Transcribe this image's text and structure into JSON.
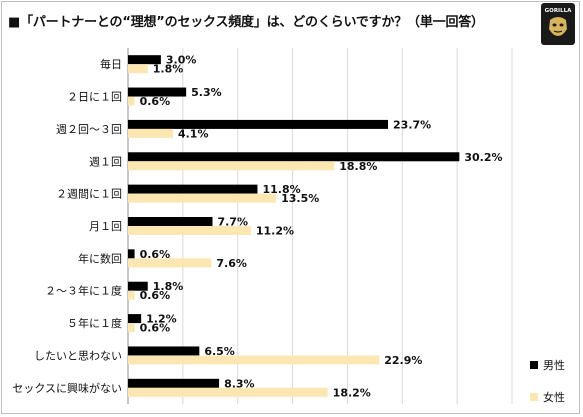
{
  "title": "■「パートナーとの“理想”のセックス頻度」は、どのくらいですか？（単一回答）",
  "logo": {
    "text": "GORILLA",
    "icon": "gorilla-icon"
  },
  "colors": {
    "male": "#000000",
    "female": "#fce7b2",
    "grid": "#d9d9d9",
    "text": "#111111"
  },
  "chart_data": {
    "type": "bar",
    "orientation": "horizontal",
    "categories": [
      "毎日",
      "２日に１回",
      "週２回～３回",
      "週１回",
      "２週間に１回",
      "月１回",
      "年に数回",
      "２～３年に１度",
      "５年に１度",
      "したいと思わない",
      "セックスに興味がない"
    ],
    "series": [
      {
        "name": "男性",
        "values": [
          3.0,
          5.3,
          23.7,
          30.2,
          11.8,
          7.7,
          0.6,
          1.8,
          1.2,
          6.5,
          8.3
        ]
      },
      {
        "name": "女性",
        "values": [
          1.8,
          0.6,
          4.1,
          18.8,
          13.5,
          11.2,
          7.6,
          0.6,
          0.6,
          22.9,
          18.2
        ]
      }
    ],
    "xlim": [
      0,
      35
    ],
    "grid": true,
    "legend": "bottom-right"
  }
}
